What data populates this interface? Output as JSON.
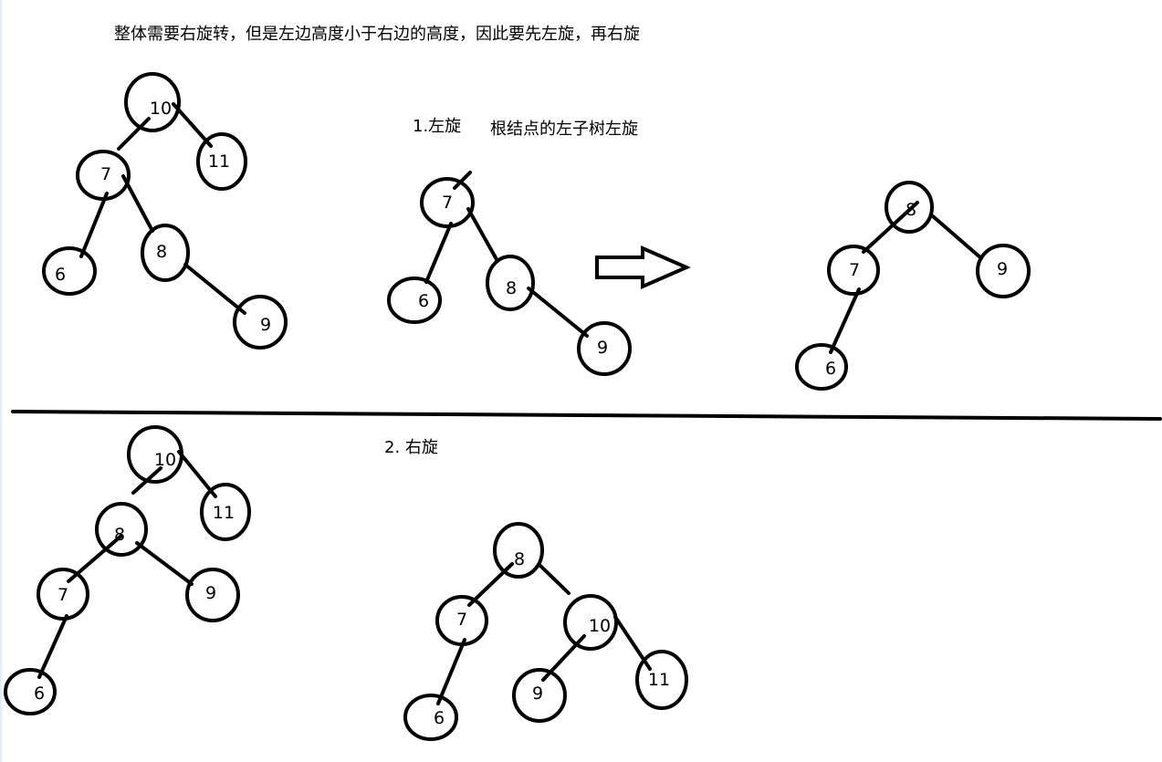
{
  "title": "整体需要右旋转，但是左边高度小于右边的高度，因此要先左旋，再右旋",
  "step1": {
    "label": "1.左旋",
    "note": "根结点的左子树左旋"
  },
  "step2": {
    "label": "2. 右旋"
  },
  "trees": {
    "original": [
      "10",
      "11",
      "7",
      "6",
      "8",
      "9"
    ],
    "left_subtree_before": [
      "7",
      "6",
      "8",
      "9"
    ],
    "left_subtree_after": [
      "8",
      "7",
      "9",
      "6"
    ],
    "after_step1": [
      "10",
      "11",
      "8",
      "7",
      "9",
      "6"
    ],
    "final": [
      "8",
      "7",
      "10",
      "6",
      "9",
      "11"
    ]
  },
  "arrow": "right-arrow"
}
